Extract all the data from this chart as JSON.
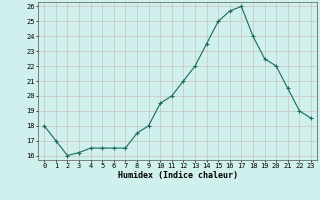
{
  "x": [
    0,
    1,
    2,
    3,
    4,
    5,
    6,
    7,
    8,
    9,
    10,
    11,
    12,
    13,
    14,
    15,
    16,
    17,
    18,
    19,
    20,
    21,
    22,
    23
  ],
  "y": [
    18.0,
    17.0,
    16.0,
    16.2,
    16.5,
    16.5,
    16.5,
    16.5,
    17.5,
    18.0,
    19.5,
    20.0,
    21.0,
    22.0,
    23.5,
    25.0,
    25.7,
    26.0,
    24.0,
    22.5,
    22.0,
    20.5,
    19.0,
    18.5
  ],
  "xlabel": "Humidex (Indice chaleur)",
  "ylim_min": 16,
  "ylim_max": 26,
  "xlim_min": 0,
  "xlim_max": 23,
  "ytick_labels": [
    "16",
    "17",
    "18",
    "19",
    "20",
    "21",
    "22",
    "23",
    "24",
    "25",
    "26"
  ],
  "ytick_vals": [
    16,
    17,
    18,
    19,
    20,
    21,
    22,
    23,
    24,
    25,
    26
  ],
  "xtick_vals": [
    0,
    1,
    2,
    3,
    4,
    5,
    6,
    7,
    8,
    9,
    10,
    11,
    12,
    13,
    14,
    15,
    16,
    17,
    18,
    19,
    20,
    21,
    22,
    23
  ],
  "xtick_labels": [
    "0",
    "1",
    "2",
    "3",
    "4",
    "5",
    "6",
    "7",
    "8",
    "9",
    "10",
    "11",
    "12",
    "13",
    "14",
    "15",
    "16",
    "17",
    "18",
    "19",
    "20",
    "21",
    "22",
    "23"
  ],
  "line_color": "#1a6b5a",
  "marker": "+",
  "marker_size": 3,
  "linewidth": 0.8,
  "bg_color": "#cff0ec",
  "grid_color": "#c8b8b8",
  "xlabel_fontsize": 6,
  "tick_fontsize": 5
}
